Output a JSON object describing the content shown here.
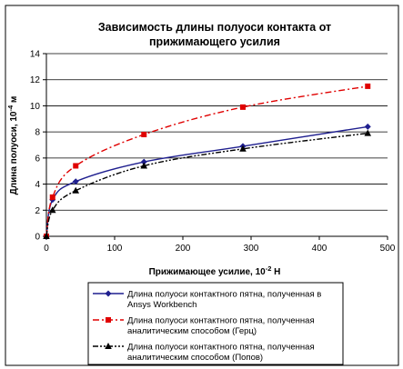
{
  "chart_data": {
    "type": "line",
    "title_line1": "Зависимость длины полуоси контакта от",
    "title_line2": "прижимающего усилия",
    "ylabel": "Длина полуоси, 10",
    "ylabel_exp": "-4",
    "ylabel_unit": " м",
    "xlabel": "Прижимающее усилие, 10",
    "xlabel_exp": "-2",
    "xlabel_unit": " Н",
    "xlim": [
      0,
      500
    ],
    "ylim": [
      0,
      14
    ],
    "xticks": [
      0,
      100,
      200,
      300,
      400,
      500
    ],
    "yticks": [
      0,
      2,
      4,
      6,
      8,
      10,
      12,
      14
    ],
    "grid": "horizontal",
    "legend_placement": "bottom",
    "series": [
      {
        "legend_line1": "Длина полуоси контактного пятна, полученная в",
        "legend_line2": "Ansys Workbench",
        "color": "#1f1f8f",
        "marker": "diamond",
        "dash": "solid",
        "x": [
          0,
          9,
          43,
          143,
          288,
          471
        ],
        "y": [
          0,
          2.8,
          4.2,
          5.7,
          6.9,
          8.4
        ]
      },
      {
        "legend_line1": "Длина полуоси контактного пятна, полученная",
        "legend_line2": "аналитическим способом (Герц)",
        "color": "#e00000",
        "marker": "square",
        "dash": "dashdot",
        "x": [
          0,
          9,
          43,
          143,
          288,
          471
        ],
        "y": [
          0,
          3.0,
          5.4,
          7.8,
          9.9,
          11.5
        ]
      },
      {
        "legend_line1": "Длина полуоси контактного пятна, полученная",
        "legend_line2": "аналитическим способом (Попов)",
        "color": "#000000",
        "marker": "triangle",
        "dash": "dashdotdot",
        "x": [
          0,
          9,
          43,
          143,
          288,
          471
        ],
        "y": [
          0,
          2.0,
          3.5,
          5.4,
          6.7,
          7.9
        ]
      }
    ]
  }
}
